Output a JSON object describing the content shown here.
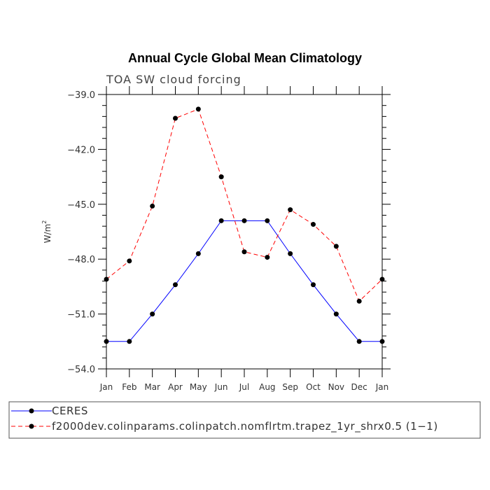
{
  "chart_data": {
    "type": "line",
    "title": "Annual Cycle Global Mean Climatology",
    "subtitle": "TOA SW cloud forcing",
    "xlabel": "",
    "ylabel": "W/m",
    "ylabel_sup": "2",
    "categories": [
      "Jan",
      "Feb",
      "Mar",
      "Apr",
      "May",
      "Jun",
      "Jul",
      "Aug",
      "Sep",
      "Oct",
      "Nov",
      "Dec",
      "Jan"
    ],
    "ylim": [
      -54.0,
      -39.0
    ],
    "yticks": [
      -54.0,
      -51.0,
      -48.0,
      -45.0,
      -42.0,
      -39.0
    ],
    "ytick_labels": [
      "−54.0",
      "−51.0",
      "−48.0",
      "−45.0",
      "−42.0",
      "−39.0"
    ],
    "series": [
      {
        "name": "CERES",
        "color": "#0000ff",
        "dash": "solid",
        "values": [
          -52.5,
          -52.5,
          -51.0,
          -49.4,
          -47.7,
          -45.9,
          -45.9,
          -45.9,
          -47.7,
          -49.4,
          -51.0,
          -52.5,
          -52.5
        ]
      },
      {
        "name": "f2000dev.colinparams.colinpatch.nomflrtm.trapez_1yr_shrx0.5 (1−1)",
        "color": "#ff0000",
        "dash": "dashed",
        "values": [
          -49.1,
          -48.1,
          -45.1,
          -40.3,
          -39.8,
          -43.5,
          -47.6,
          -47.9,
          -45.3,
          -46.1,
          -47.3,
          -50.3,
          -49.1
        ]
      }
    ]
  }
}
